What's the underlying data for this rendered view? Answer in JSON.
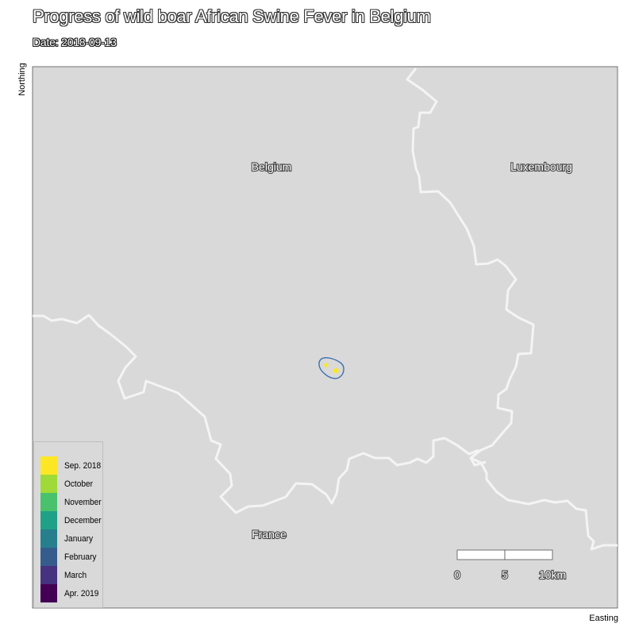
{
  "title": "Progress of wild boar African Swine Fever in Belgium",
  "subtitle": "Date: 2018-09-13",
  "axes": {
    "y_label": "Northing",
    "x_label": "Easting"
  },
  "regions": {
    "belgium": "Belgium",
    "luxembourg": "Luxembourg",
    "france": "France"
  },
  "scale_bar": {
    "ticks": [
      "0",
      "5",
      "10km"
    ]
  },
  "legend": {
    "items": [
      {
        "label": "Sep. 2018",
        "color": "#fde725"
      },
      {
        "label": "October",
        "color": "#a0da39"
      },
      {
        "label": "November",
        "color": "#4ac16d"
      },
      {
        "label": "December",
        "color": "#1fa187"
      },
      {
        "label": "January",
        "color": "#277f8e"
      },
      {
        "label": "February",
        "color": "#365c8d"
      },
      {
        "label": "March",
        "color": "#46327e"
      },
      {
        "label": "Apr. 2019",
        "color": "#440154"
      }
    ]
  },
  "colors": {
    "panel": "#d9d9d9",
    "border_line": "#f2f2f2",
    "zone_outline": "#3a6fb0",
    "case_point": "#fde725"
  }
}
